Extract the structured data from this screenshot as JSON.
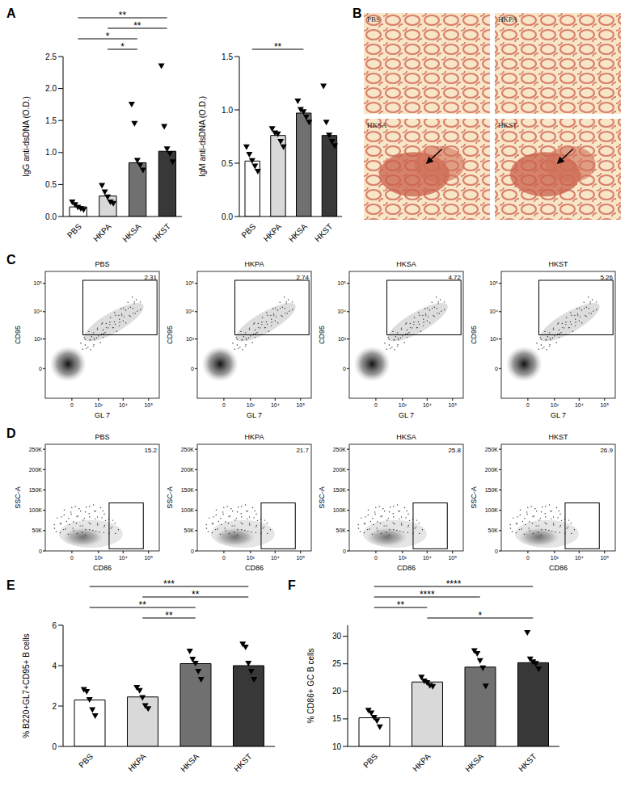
{
  "panel_labels": [
    "A",
    "B",
    "C",
    "D",
    "E",
    "F"
  ],
  "chart_data": [
    {
      "type": "bar",
      "y_label": "IgG anti-dsDNA (O.D.)",
      "categories": [
        "PBS",
        "HKPA",
        "HKSA",
        "HKST"
      ],
      "values": [
        0.15,
        0.32,
        0.84,
        1.02
      ],
      "colors": [
        "#ffffff",
        "#d9d9d9",
        "#707070",
        "#383838"
      ],
      "points": [
        [
          0.22,
          0.18,
          0.14,
          0.12,
          0.1
        ],
        [
          0.48,
          0.38,
          0.3,
          0.22,
          0.2
        ],
        [
          1.75,
          1.45,
          0.87,
          0.8,
          0.72
        ],
        [
          2.35,
          1.4,
          1.05,
          0.98,
          0.85
        ]
      ],
      "marker": "triangle-down",
      "ylim": [
        0,
        2.5
      ],
      "yticks": [
        {
          "value": 0,
          "label": "0.0"
        },
        0.5,
        {
          "value": 1,
          "label": "1.0"
        },
        1.5,
        {
          "value": 2,
          "label": "2.0"
        },
        2.5
      ],
      "significance": [
        {
          "from": "PBS",
          "to": "HKST",
          "label": "**"
        },
        {
          "from": "HKPA",
          "to": "HKST",
          "label": "**"
        },
        {
          "from": "PBS",
          "to": "HKSA",
          "label": "*"
        },
        {
          "from": "HKPA",
          "to": "HKSA",
          "label": "*"
        }
      ]
    },
    {
      "type": "bar",
      "y_label": "IgM anti-dsDNA (O.D.)",
      "categories": [
        "PBS",
        "HKPA",
        "HKSA",
        "HKST"
      ],
      "values": [
        0.52,
        0.76,
        0.97,
        0.76
      ],
      "colors": [
        "#ffffff",
        "#d9d9d9",
        "#707070",
        "#383838"
      ],
      "points": [
        [
          0.65,
          0.58,
          0.52,
          0.47,
          0.42
        ],
        [
          0.82,
          0.78,
          0.77,
          0.7,
          0.65
        ],
        [
          1.08,
          1.0,
          0.98,
          0.93,
          0.88
        ],
        [
          1.22,
          0.88,
          0.76,
          0.7,
          0.66
        ]
      ],
      "marker": "triangle-down",
      "ylim": [
        0,
        1.5
      ],
      "yticks": [
        {
          "value": 0,
          "label": "0.0"
        },
        0.5,
        {
          "value": 1,
          "label": "1.0"
        },
        1.5
      ],
      "significance": [
        {
          "from": "PBS",
          "to": "HKSA",
          "label": "**"
        }
      ]
    },
    {
      "type": "bar",
      "y_label": "% B220+GL7+CD95+ B cells",
      "categories": [
        "PBS",
        "HKPA",
        "HKSA",
        "HKST"
      ],
      "values": [
        2.3,
        2.45,
        4.1,
        4.0
      ],
      "colors": [
        "#ffffff",
        "#d9d9d9",
        "#707070",
        "#383838"
      ],
      "points": [
        [
          2.8,
          2.7,
          2.3,
          1.8,
          1.5
        ],
        [
          2.9,
          2.75,
          2.4,
          2.0,
          1.85
        ],
        [
          4.7,
          4.3,
          4.1,
          3.7,
          3.3
        ],
        [
          5.05,
          4.9,
          4.1,
          3.7,
          3.3
        ]
      ],
      "marker": "triangle-down",
      "ylim": [
        0,
        6
      ],
      "yticks": [
        0,
        2,
        4,
        6
      ],
      "significance": [
        {
          "from": "PBS",
          "to": "HKST",
          "label": "***"
        },
        {
          "from": "HKPA",
          "to": "HKST",
          "label": "**"
        },
        {
          "from": "PBS",
          "to": "HKSA",
          "label": "**"
        },
        {
          "from": "HKPA",
          "to": "HKSA",
          "label": "**"
        }
      ]
    },
    {
      "type": "bar",
      "y_label": "% CD86+ GC B cells",
      "categories": [
        "PBS",
        "HKPA",
        "HKSA",
        "HKST"
      ],
      "values": [
        15.2,
        21.7,
        24.4,
        25.2
      ],
      "colors": [
        "#ffffff",
        "#d9d9d9",
        "#707070",
        "#383838"
      ],
      "points": [
        [
          16.5,
          16.0,
          15.2,
          14.6,
          13.5
        ],
        [
          22.5,
          21.8,
          21.5,
          21.0,
          20.8
        ],
        [
          27.3,
          26.8,
          25.5,
          24.2,
          20.9
        ],
        [
          30.6,
          25.8,
          25.3,
          25.0,
          24.0
        ]
      ],
      "marker": "triangle-down",
      "ylim": [
        10,
        32
      ],
      "yticks": [
        10,
        15,
        20,
        25,
        30
      ],
      "significance": [
        {
          "from": "PBS",
          "to": "HKST",
          "label": "****"
        },
        {
          "from": "PBS",
          "to": "HKSA",
          "label": "****"
        },
        {
          "from": "PBS",
          "to": "HKPA",
          "label": "**"
        },
        {
          "from": "HKPA",
          "to": "HKST",
          "label": "*"
        }
      ]
    }
  ],
  "histology": {
    "images": [
      {
        "label": "PBS"
      },
      {
        "label": "HKPA"
      },
      {
        "label": "HKSA",
        "marker": "arrow"
      },
      {
        "label": "HKST",
        "marker": "arrow"
      }
    ]
  },
  "flow_cytometry": [
    {
      "x_label": "GL 7",
      "y_label": "CD95",
      "log": true,
      "xlim": [
        -1000,
        262144
      ],
      "ylim": [
        -1000,
        262144
      ],
      "xticks": [
        0,
        {
          "value": 1000,
          "label": "10³"
        },
        {
          "value": 10000,
          "label": "10⁴"
        },
        {
          "value": 100000,
          "label": "10⁵"
        }
      ],
      "yticks": [
        0,
        {
          "value": 1000,
          "label": "10³"
        },
        {
          "value": 10000,
          "label": "10⁴"
        },
        {
          "value": 100000,
          "label": "10⁵"
        }
      ],
      "plots": [
        {
          "title": "PBS",
          "gate_value": 2.31
        },
        {
          "title": "HKPA",
          "gate_value": 2.74
        },
        {
          "title": "HKSA",
          "gate_value": 4.72
        },
        {
          "title": "HKST",
          "gate_value": 5.26
        }
      ]
    },
    {
      "x_label": "CD86",
      "y_label": "SSC-A",
      "log": "x",
      "xlim": [
        -1000,
        262144
      ],
      "ylim": [
        0,
        262144
      ],
      "xticks": [
        0,
        {
          "value": 1000,
          "label": "10³"
        },
        {
          "value": 10000,
          "label": "10⁴"
        },
        {
          "value": 100000,
          "label": "10⁵"
        }
      ],
      "yticks": [
        0,
        {
          "value": 50000,
          "label": "50K"
        },
        {
          "value": 100000,
          "label": "100K"
        },
        {
          "value": 150000,
          "label": "150K"
        },
        {
          "value": 200000,
          "label": "200K"
        },
        {
          "value": 250000,
          "label": "250K"
        }
      ],
      "plots": [
        {
          "title": "PBS",
          "gate_value": 15.2
        },
        {
          "title": "HKPA",
          "gate_value": 21.7
        },
        {
          "title": "HKSA",
          "gate_value": 25.8
        },
        {
          "title": "HKST",
          "gate_value": 26.9
        }
      ]
    }
  ]
}
